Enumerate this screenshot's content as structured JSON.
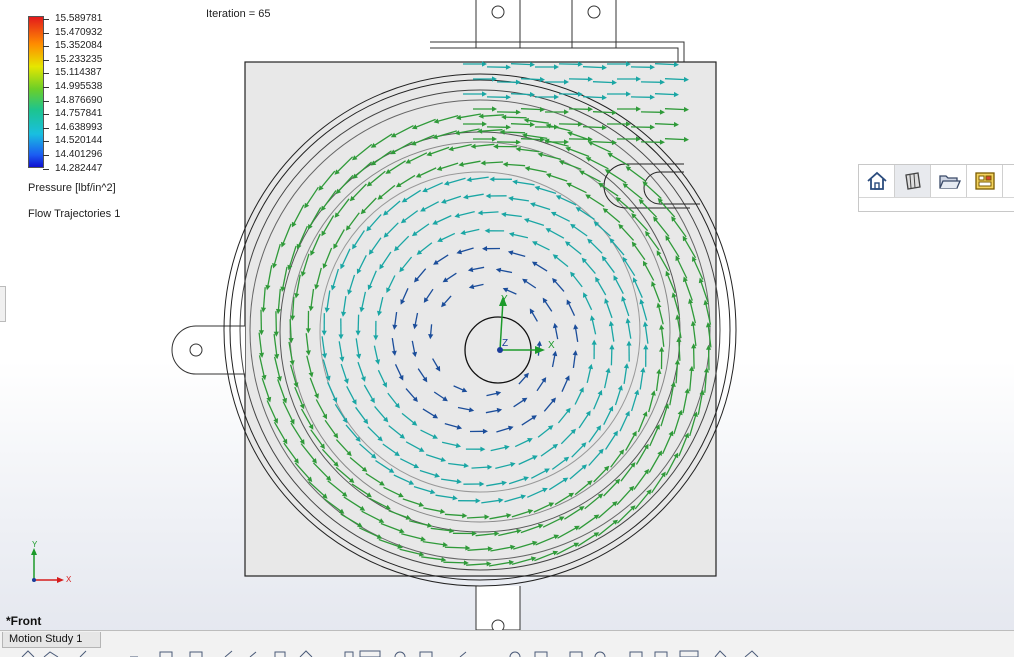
{
  "legend": {
    "values": [
      "15.589781",
      "15.470932",
      "15.352084",
      "15.233235",
      "15.114387",
      "14.995538",
      "14.876690",
      "14.757841",
      "14.638993",
      "14.520144",
      "14.401296",
      "14.282447"
    ],
    "title": "Pressure [lbf/in^2]",
    "colors": {
      "max": "#e31a1c",
      "mid": "#6ccf28",
      "min": "#1010d0"
    }
  },
  "feature_label": "Flow Trajectories 1",
  "iteration_label": "Iteration = 65",
  "triad": {
    "model": {
      "x": "X",
      "y": "Y",
      "z": "Z"
    },
    "corner": {
      "x": "X",
      "y": "Y"
    }
  },
  "view_name": "*Front",
  "bottom_tabs": [
    {
      "label": "Motion Study 1"
    }
  ],
  "hud_toolbar": {
    "icons": [
      "home-icon",
      "part-icon",
      "folder-icon",
      "design-library-icon",
      "more-icon"
    ]
  },
  "colors": {
    "outer_flow": "#2f9a39",
    "inner_flow": "#1aa6a4",
    "core_flow": "#1b4d9a",
    "part_face": "#e8e8e8"
  }
}
